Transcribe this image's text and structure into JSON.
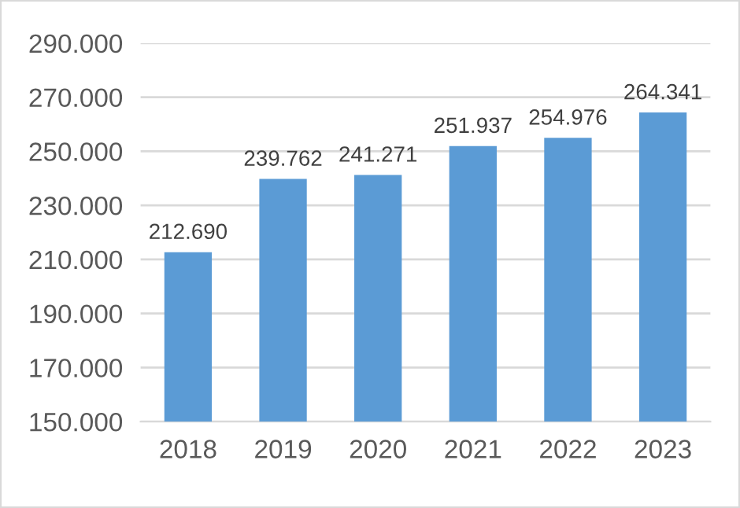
{
  "chart_data": {
    "type": "bar",
    "categories": [
      "2018",
      "2019",
      "2020",
      "2021",
      "2022",
      "2023"
    ],
    "values": [
      212690,
      239762,
      241271,
      251937,
      254976,
      264341
    ],
    "value_labels": [
      "212.690",
      "239.762",
      "241.271",
      "251.937",
      "254.976",
      "264.341"
    ],
    "color": "#5b9bd5",
    "ylim": [
      150000,
      290000
    ],
    "yticks": [
      {
        "value": 150000,
        "label": "150.000"
      },
      {
        "value": 170000,
        "label": "170.000"
      },
      {
        "value": 190000,
        "label": "190.000"
      },
      {
        "value": 210000,
        "label": "210.000"
      },
      {
        "value": 230000,
        "label": "230.000"
      },
      {
        "value": 250000,
        "label": "250.000"
      },
      {
        "value": 270000,
        "label": "270.000"
      },
      {
        "value": 290000,
        "label": "290.000"
      }
    ],
    "grid": "y"
  }
}
